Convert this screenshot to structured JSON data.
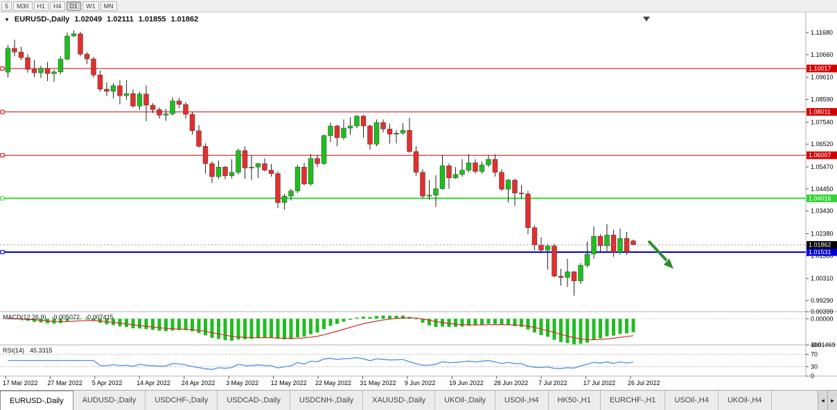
{
  "toolbar": {
    "periods": [
      "5",
      "M30",
      "H1",
      "H4",
      "D1",
      "W1",
      "MN"
    ],
    "active": "D1"
  },
  "chart": {
    "header": {
      "dropdown_icon": "▼",
      "symbol": "EURUSD-,Daily",
      "open": "1.02049",
      "high": "1.02111",
      "low": "1.01855",
      "close": "1.01862"
    }
  },
  "indicators": {
    "macd": {
      "name": "MACD(12,26,9)",
      "value_main": "-0.005072",
      "value_signal": "-0.007415"
    },
    "rsi": {
      "name": "RSI(14)",
      "value": "45.3315"
    }
  },
  "chart_data": {
    "type": "candlestick",
    "symbol": "EURUSD-,Daily",
    "price_range": {
      "top": 1.12608,
      "bottom": 0.98778
    },
    "price_axis_ticks": [
      1.1168,
      1.1066,
      1.0961,
      1.0859,
      1.0754,
      1.0652,
      1.0547,
      1.0445,
      1.0343,
      1.0238,
      1.0136,
      1.0031,
      0.9929
    ],
    "levels": [
      {
        "value": 1.10017,
        "label": "1.10017",
        "color": "#d40000",
        "width": 1
      },
      {
        "value": 1.08011,
        "label": "1.08011",
        "color": "#d40000",
        "width": 1
      },
      {
        "value": 1.06007,
        "label": "1.06007",
        "color": "#d40000",
        "width": 1
      },
      {
        "value": 1.04016,
        "label": "1.04016",
        "color": "#33d433",
        "width": 2
      },
      {
        "value": 1.01531,
        "label": "1.01531",
        "color": "#0000d4",
        "width": 2
      }
    ],
    "current_price": {
      "value": 1.01862,
      "label": "1.01862",
      "tag_color": "#000000"
    },
    "colors": {
      "up": "#1fbe1f",
      "down": "#e03030",
      "wick": "#222222",
      "macd_bar": "#1fbe1f",
      "macd_signal": "#d42a2a",
      "rsi_line": "#4a90d9",
      "arrow": "#2e8b2e"
    },
    "candles": [
      [
        1.0985,
        1.111,
        1.096,
        1.1095
      ],
      [
        1.1095,
        1.1135,
        1.1058,
        1.1078
      ],
      [
        1.1078,
        1.1102,
        1.104,
        1.1052
      ],
      [
        1.1052,
        1.1068,
        1.0982,
        1.0998
      ],
      [
        1.0998,
        1.1042,
        1.0962,
        1.0982
      ],
      [
        1.0982,
        1.1015,
        1.0958,
        1.1002
      ],
      [
        1.1002,
        1.1032,
        1.0944,
        1.0978
      ],
      [
        1.0978,
        1.0996,
        1.094,
        1.0986
      ],
      [
        1.0986,
        1.1058,
        1.0975,
        1.1045
      ],
      [
        1.1045,
        1.1168,
        1.104,
        1.1152
      ],
      [
        1.1152,
        1.1178,
        1.1148,
        1.1162
      ],
      [
        1.1162,
        1.1172,
        1.1058,
        1.1068
      ],
      [
        1.1068,
        1.1078,
        1.1022,
        1.1046
      ],
      [
        1.1046,
        1.1056,
        1.096,
        1.0972
      ],
      [
        1.0972,
        1.0992,
        1.0895,
        1.0906
      ],
      [
        1.0906,
        1.0938,
        1.0874,
        1.0896
      ],
      [
        1.0896,
        1.0934,
        1.0864,
        1.0922
      ],
      [
        1.0922,
        1.0948,
        1.0836,
        1.0876
      ],
      [
        1.0876,
        1.0948,
        1.0858,
        1.0886
      ],
      [
        1.0886,
        1.0905,
        1.0821,
        1.0828
      ],
      [
        1.0828,
        1.0895,
        1.081,
        1.0884
      ],
      [
        1.0884,
        1.0924,
        1.0758,
        1.0832
      ],
      [
        1.0832,
        1.0842,
        1.0796,
        1.0812
      ],
      [
        1.0812,
        1.0822,
        1.077,
        1.0786
      ],
      [
        1.0786,
        1.0816,
        1.076,
        1.0792
      ],
      [
        1.0792,
        1.0868,
        1.0784,
        1.0852
      ],
      [
        1.0852,
        1.0866,
        1.082,
        1.0836
      ],
      [
        1.0836,
        1.0846,
        1.077,
        1.079
      ],
      [
        1.079,
        1.0802,
        1.0696,
        1.0714
      ],
      [
        1.0714,
        1.074,
        1.0636,
        1.0642
      ],
      [
        1.0642,
        1.0656,
        1.0516,
        1.0562
      ],
      [
        1.0562,
        1.0572,
        1.0472,
        1.0502
      ],
      [
        1.0502,
        1.0576,
        1.0492,
        1.0546
      ],
      [
        1.0546,
        1.0552,
        1.049,
        1.0506
      ],
      [
        1.0506,
        1.0582,
        1.0494,
        1.0522
      ],
      [
        1.0522,
        1.0632,
        1.0512,
        1.0622
      ],
      [
        1.0622,
        1.0642,
        1.0492,
        1.0542
      ],
      [
        1.0542,
        1.06,
        1.0486,
        1.0546
      ],
      [
        1.0546,
        1.0566,
        1.0496,
        1.0562
      ],
      [
        1.0562,
        1.0586,
        1.0526,
        1.0532
      ],
      [
        1.0532,
        1.056,
        1.0502,
        1.0516
      ],
      [
        1.0516,
        1.0526,
        1.0356,
        1.0382
      ],
      [
        1.0382,
        1.0422,
        1.035,
        1.0412
      ],
      [
        1.0412,
        1.0446,
        1.0392,
        1.0436
      ],
      [
        1.0436,
        1.0556,
        1.0426,
        1.0546
      ],
      [
        1.0546,
        1.0566,
        1.0462,
        1.0468
      ],
      [
        1.0468,
        1.0606,
        1.046,
        1.0586
      ],
      [
        1.0586,
        1.0602,
        1.0546,
        1.0562
      ],
      [
        1.0562,
        1.0696,
        1.0556,
        1.0692
      ],
      [
        1.0692,
        1.0752,
        1.0662,
        1.0736
      ],
      [
        1.0736,
        1.0742,
        1.0642,
        1.0682
      ],
      [
        1.0682,
        1.0766,
        1.0672,
        1.0726
      ],
      [
        1.0726,
        1.0776,
        1.0696,
        1.0736
      ],
      [
        1.0736,
        1.0786,
        1.0726,
        1.0782
      ],
      [
        1.0782,
        1.0788,
        1.0682,
        1.0736
      ],
      [
        1.0736,
        1.0742,
        1.0626,
        1.0652
      ],
      [
        1.0652,
        1.0766,
        1.0642,
        1.0752
      ],
      [
        1.0752,
        1.0766,
        1.0706,
        1.0722
      ],
      [
        1.0722,
        1.0746,
        1.0654,
        1.0698
      ],
      [
        1.0698,
        1.0716,
        1.0656,
        1.0703
      ],
      [
        1.0703,
        1.0749,
        1.0696,
        1.0716
      ],
      [
        1.0716,
        1.0774,
        1.0612,
        1.0618
      ],
      [
        1.0618,
        1.0642,
        1.0506,
        1.0522
      ],
      [
        1.0522,
        1.0536,
        1.0402,
        1.0412
      ],
      [
        1.0412,
        1.0486,
        1.0396,
        1.0416
      ],
      [
        1.0416,
        1.0508,
        1.0362,
        1.0446
      ],
      [
        1.0446,
        1.0602,
        1.0442,
        1.0552
      ],
      [
        1.0552,
        1.0562,
        1.0446,
        1.0496
      ],
      [
        1.0496,
        1.0546,
        1.0492,
        1.0512
      ],
      [
        1.0512,
        1.0582,
        1.0502,
        1.0532
      ],
      [
        1.0532,
        1.0606,
        1.0522,
        1.0566
      ],
      [
        1.0566,
        1.0582,
        1.0516,
        1.0526
      ],
      [
        1.0526,
        1.0572,
        1.0516,
        1.0556
      ],
      [
        1.0556,
        1.0602,
        1.0546,
        1.0582
      ],
      [
        1.0582,
        1.0606,
        1.0502,
        1.0522
      ],
      [
        1.0522,
        1.0536,
        1.0436,
        1.0444
      ],
      [
        1.0444,
        1.0492,
        1.0382,
        1.0486
      ],
      [
        1.0486,
        1.0492,
        1.0366,
        1.0426
      ],
      [
        1.0426,
        1.0462,
        1.0402,
        1.0422
      ],
      [
        1.0422,
        1.0436,
        1.0236,
        1.0266
      ],
      [
        1.0266,
        1.0276,
        1.0162,
        1.0186
      ],
      [
        1.0186,
        1.0222,
        1.0146,
        1.0162
      ],
      [
        1.0162,
        1.0192,
        1.0072,
        1.0182
      ],
      [
        1.0182,
        1.0192,
        1.0036,
        1.0042
      ],
      [
        1.0042,
        1.0076,
        0.9998,
        1.0036
      ],
      [
        1.0036,
        1.0122,
        0.9992,
        1.0062
      ],
      [
        1.0062,
        1.0066,
        0.9952,
        1.002
      ],
      [
        1.002,
        1.0102,
        1.0006,
        1.0092
      ],
      [
        1.0092,
        1.0202,
        1.0082,
        1.0144
      ],
      [
        1.0144,
        1.0272,
        1.0122,
        1.0226
      ],
      [
        1.0226,
        1.0236,
        1.0156,
        1.0182
      ],
      [
        1.0182,
        1.0282,
        1.0152,
        1.0232
      ],
      [
        1.0232,
        1.0256,
        1.0132,
        1.0152
      ],
      [
        1.0152,
        1.0262,
        1.0142,
        1.0216
      ],
      [
        1.0216,
        1.0246,
        1.014,
        1.0153
      ],
      [
        1.02049,
        1.02111,
        1.01855,
        1.01862
      ]
    ],
    "dates": [
      "17 Mar 2022",
      "27 Mar 2022",
      "5 Apr 2022",
      "14 Apr 2022",
      "24 Apr 2022",
      "3 May 2022",
      "12 May 2022",
      "22 May 2022",
      "31 May 2022",
      "9 Jun 2022",
      "19 Jun 2022",
      "28 Jun 2022",
      "7 Jul 2022",
      "17 Jul 2022",
      "26 Jul 2022"
    ],
    "macd": {
      "params": [
        12,
        26,
        9
      ],
      "range": [
        -0.01469,
        0.00399
      ],
      "axis": [
        {
          "v": 0.00399,
          "label": "0.00399"
        },
        {
          "v": 0.0,
          "label": "0.00000"
        },
        {
          "v": -0.01469,
          "label": "-0.01469"
        }
      ]
    },
    "rsi": {
      "period": 14,
      "range": [
        0,
        100
      ],
      "guides": [
        70,
        30
      ],
      "axis": [
        {
          "v": 100,
          "label": "100"
        },
        {
          "v": 70,
          "label": "70"
        },
        {
          "v": 30,
          "label": "30"
        },
        {
          "v": 0,
          "label": "0"
        }
      ]
    }
  },
  "tabs": {
    "items": [
      {
        "label": "EURUSD-,Daily",
        "active": true
      },
      {
        "label": "AUDUSD-,Daily",
        "active": false
      },
      {
        "label": "USDCHF-,Daily",
        "active": false
      },
      {
        "label": "USDCAD-,Daily",
        "active": false
      },
      {
        "label": "USDCNH-,Daily",
        "active": false
      },
      {
        "label": "XAUUSD-,Daily",
        "active": false
      },
      {
        "label": "UKOil-,Daily",
        "active": false
      },
      {
        "label": "USOil-,H4",
        "active": false
      },
      {
        "label": "HK50-,H1",
        "active": false
      },
      {
        "label": "EURCHF-,H1",
        "active": false
      },
      {
        "label": "USOil-,H4",
        "active": false
      },
      {
        "label": "UKOil-,H4",
        "active": false
      }
    ],
    "scroll_left": "◄",
    "scroll_right": "►"
  }
}
